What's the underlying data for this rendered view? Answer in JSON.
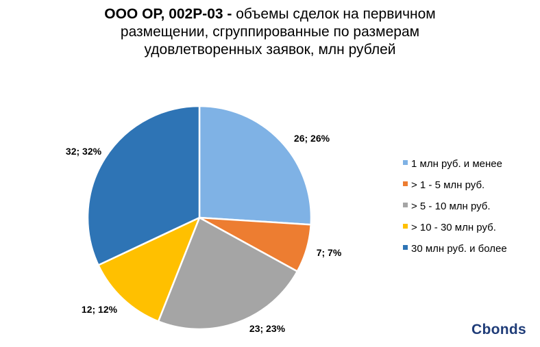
{
  "title": {
    "bold": "ООО ОР, 002Р-03 -",
    "line1_rest": " объемы сделок на первичном",
    "line2": "размещении, сгруппированные по размерам",
    "line3": "удовлетворенных заявок, млн рублей"
  },
  "brand": "Cbonds",
  "chart_data": {
    "type": "pie",
    "categories": [
      "1 млн руб. и менее",
      "> 1 - 5 млн руб.",
      "> 5 - 10 млн руб.",
      "> 10 - 30 млн руб.",
      "30 млн руб. и более"
    ],
    "values": [
      26,
      7,
      23,
      12,
      32
    ],
    "percents": [
      26,
      7,
      23,
      12,
      32
    ],
    "data_labels": [
      "26; 26%",
      "7; 7%",
      "23; 23%",
      "12; 12%",
      "32; 32%"
    ],
    "colors": [
      "#7fb2e5",
      "#ed7d31",
      "#a5a5a5",
      "#ffc000",
      "#2e74b5"
    ],
    "legend_position": "right",
    "start_angle": "12 o'clock",
    "direction": "clockwise"
  }
}
